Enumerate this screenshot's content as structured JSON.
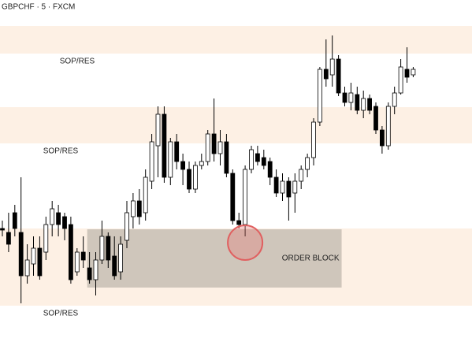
{
  "chart_data": {
    "type": "candlestick",
    "title": "GBPCHF · 5 · FXCM",
    "ylim": [
      0,
      429
    ],
    "open": [
      139,
      134,
      159,
      134,
      79,
      94,
      114,
      109,
      144,
      159,
      154,
      144,
      84,
      109,
      89,
      74,
      99,
      129,
      104,
      84,
      124,
      154,
      174,
      159,
      199,
      244,
      284,
      204,
      249,
      224,
      214,
      189,
      219,
      224,
      259,
      234,
      249,
      209,
      149,
      144,
      214,
      234,
      229,
      224,
      204,
      184,
      199,
      184,
      199,
      214,
      229,
      274,
      341,
      334,
      354,
      311,
      299,
      309,
      289,
      304,
      294,
      264,
      244,
      294,
      311,
      341,
      334
    ],
    "high": [
      149,
      159,
      169,
      204,
      119,
      129,
      129,
      154,
      174,
      169,
      159,
      154,
      114,
      129,
      109,
      109,
      149,
      134,
      129,
      129,
      174,
      184,
      189,
      214,
      259,
      294,
      294,
      254,
      259,
      234,
      224,
      224,
      234,
      264,
      304,
      264,
      259,
      214,
      159,
      219,
      244,
      244,
      239,
      229,
      214,
      209,
      204,
      209,
      219,
      234,
      279,
      344,
      379,
      384,
      359,
      319,
      324,
      319,
      314,
      309,
      299,
      269,
      299,
      319,
      354,
      369,
      344
    ],
    "low": [
      129,
      109,
      129,
      44,
      69,
      79,
      74,
      99,
      129,
      129,
      124,
      69,
      79,
      89,
      69,
      54,
      94,
      89,
      74,
      74,
      114,
      139,
      144,
      149,
      189,
      204,
      197,
      194,
      214,
      194,
      184,
      184,
      214,
      219,
      224,
      219,
      204,
      144,
      139,
      129,
      209,
      219,
      214,
      194,
      179,
      174,
      149,
      159,
      189,
      204,
      219,
      269,
      319,
      319,
      307,
      294,
      289,
      284,
      279,
      284,
      259,
      234,
      239,
      284,
      309,
      324,
      331
    ],
    "close": [
      137,
      119,
      139,
      79,
      99,
      114,
      79,
      144,
      164,
      144,
      139,
      74,
      109,
      99,
      74,
      99,
      129,
      99,
      79,
      119,
      159,
      174,
      154,
      204,
      249,
      284,
      204,
      249,
      224,
      214,
      189,
      219,
      224,
      259,
      234,
      249,
      209,
      149,
      144,
      214,
      239,
      224,
      219,
      204,
      184,
      199,
      179,
      199,
      214,
      229,
      274,
      341,
      329,
      354,
      311,
      299,
      311,
      289,
      304,
      289,
      264,
      244,
      294,
      311,
      344,
      331,
      341
    ],
    "bull_color": "#ffffff",
    "bear_color": "#000000",
    "zone_color": "#fdf0e4",
    "zones": [
      {
        "label": "SOP/RES",
        "range": [
          361,
          396
        ]
      },
      {
        "label": "SOP/RES",
        "range": [
          247,
          293
        ]
      },
      {
        "label": "SOP/RES",
        "range": [
          41,
          139
        ]
      }
    ],
    "order_block": {
      "label": "ORDER BLOCK",
      "range": [
        64,
        138
      ],
      "x_range": [
        14,
        54
      ],
      "color": "#cfc6bb"
    }
  }
}
